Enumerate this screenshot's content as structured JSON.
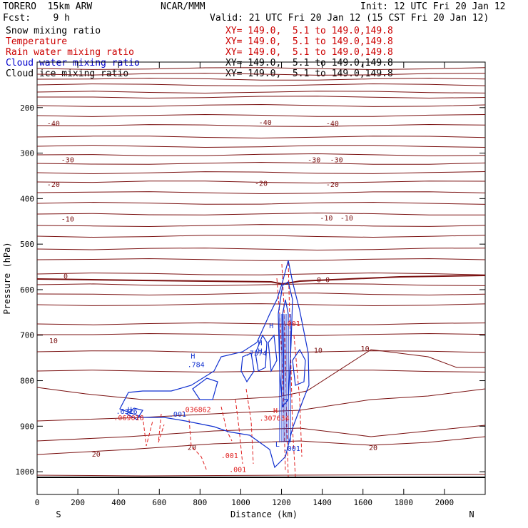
{
  "header": {
    "model": "TORERO  15km ARW",
    "org": "NCAR/MMM",
    "init": "Init: 12 UTC Fri 20 Jan 12",
    "fcst": "Fcst:    9 h",
    "valid": "Valid: 21 UTC Fri 20 Jan 12 (15 CST Fri 20 Jan 12)"
  },
  "legend": [
    {
      "label": "Snow mixing ratio",
      "xy": "XY= 149.0,  5.1 to 149.0,149.8",
      "color": "#000000"
    },
    {
      "label": "Temperature",
      "xy": "XY= 149.0,  5.1 to 149.0,149.8",
      "color": "#cc0000"
    },
    {
      "label": "Rain water mixing ratio",
      "xy": "XY= 149.0,  5.1 to 149.0,149.8",
      "color": "#cc0000"
    },
    {
      "label": "Cloud water mixing ratio",
      "xy": "XY= 149.0,  5.1 to 149.0,149.8",
      "color": "#0000cc"
    },
    {
      "label": "Cloud ice mixing ratio",
      "xy": "XY= 149.0,  5.1 to 149.0,149.8",
      "color": "#000000"
    }
  ],
  "chart_data": {
    "type": "contour cross-section",
    "xlabel": "Distance (km)",
    "ylabel": "Pressure (hPa)",
    "x_ticks": [
      0,
      200,
      400,
      600,
      800,
      1000,
      1200,
      1400,
      1600,
      1800,
      2000
    ],
    "y_ticks": [
      200,
      300,
      400,
      500,
      600,
      700,
      800,
      900,
      1000
    ],
    "xlim": [
      0,
      2200
    ],
    "ylim": [
      1050,
      100
    ],
    "left_end_label": "S",
    "right_end_label": "N",
    "isotherm_labels": [
      {
        "text": "-40",
        "x": 80,
        "p": 240
      },
      {
        "text": "-40",
        "x": 1120,
        "p": 238
      },
      {
        "text": "-40",
        "x": 1450,
        "p": 240
      },
      {
        "text": "-30",
        "x": 150,
        "p": 320
      },
      {
        "text": "-30",
        "x": 1360,
        "p": 320
      },
      {
        "text": "-30",
        "x": 1470,
        "p": 320
      },
      {
        "text": "-20",
        "x": 80,
        "p": 374
      },
      {
        "text": "-20",
        "x": 1100,
        "p": 372
      },
      {
        "text": "-20",
        "x": 1450,
        "p": 374
      },
      {
        "text": "-10",
        "x": 150,
        "p": 450
      },
      {
        "text": "-10",
        "x": 1420,
        "p": 448
      },
      {
        "text": "-10",
        "x": 1520,
        "p": 448
      },
      {
        "text": "0",
        "x": 140,
        "p": 576
      },
      {
        "text": "0-0",
        "x": 1405,
        "p": 584
      },
      {
        "text": "10",
        "x": 80,
        "p": 718
      },
      {
        "text": "10",
        "x": 1380,
        "p": 739
      },
      {
        "text": "10",
        "x": 1610,
        "p": 735
      },
      {
        "text": "20",
        "x": 290,
        "p": 967
      },
      {
        "text": "20",
        "x": 760,
        "p": 952
      },
      {
        "text": "20",
        "x": 1650,
        "p": 953
      }
    ],
    "rain_labels": [
      {
        "text": ".001",
        "x": 1250,
        "p": 680
      },
      {
        "text": ".001",
        "x": 945,
        "p": 970
      },
      {
        "text": ".001",
        "x": 985,
        "p": 1001
      },
      {
        "text": ".036862",
        "x": 780,
        "p": 869
      },
      {
        "text": "H",
        "x": 1170,
        "p": 871
      },
      {
        "text": ".307634",
        "x": 1165,
        "p": 888
      },
      {
        "text": ".069016",
        "x": 450,
        "p": 887
      }
    ],
    "cloud_labels": [
      {
        "text": "H",
        "x": 455,
        "p": 869
      },
      {
        "text": ".6326",
        "x": 440,
        "p": 873
      },
      {
        "text": ".001",
        "x": 690,
        "p": 879
      },
      {
        "text": "H",
        "x": 765,
        "p": 751
      },
      {
        "text": ".784",
        "x": 780,
        "p": 770
      },
      {
        "text": "H",
        "x": 1095,
        "p": 740
      },
      {
        "text": ".7374",
        "x": 1075,
        "p": 745
      },
      {
        "text": "H",
        "x": 1095,
        "p": 722
      },
      {
        "text": ".001",
        "x": 1250,
        "p": 954
      }
    ],
    "other_labels": [
      {
        "text": "L",
        "x": 1180,
        "p": 945
      },
      {
        "text": "H",
        "x": 1150,
        "p": 685
      }
    ]
  }
}
